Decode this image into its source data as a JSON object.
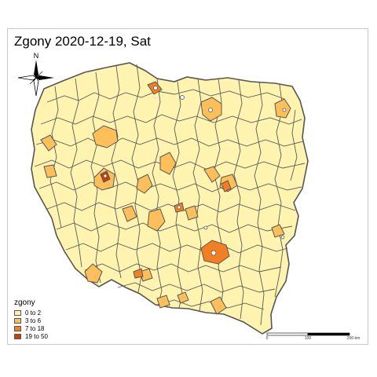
{
  "title": "Zgony 2020-12-19, Sat",
  "north_label": "N",
  "legend": {
    "title": "zgony",
    "items": [
      {
        "label": "0 to 2",
        "color": "#fff3b0"
      },
      {
        "label": "3 to 6",
        "color": "#fdbf5a"
      },
      {
        "label": "7 to 18",
        "color": "#f47f22"
      },
      {
        "label": "19 to 50",
        "color": "#c8400c"
      }
    ]
  },
  "scale_bar": {
    "labels": [
      "0",
      "100",
      "200 km"
    ]
  },
  "colors": {
    "border": "#555555",
    "class_1": "#fff3b0",
    "class_2": "#fdbf5a",
    "class_3": "#f47f22",
    "class_4": "#c8400c"
  }
}
